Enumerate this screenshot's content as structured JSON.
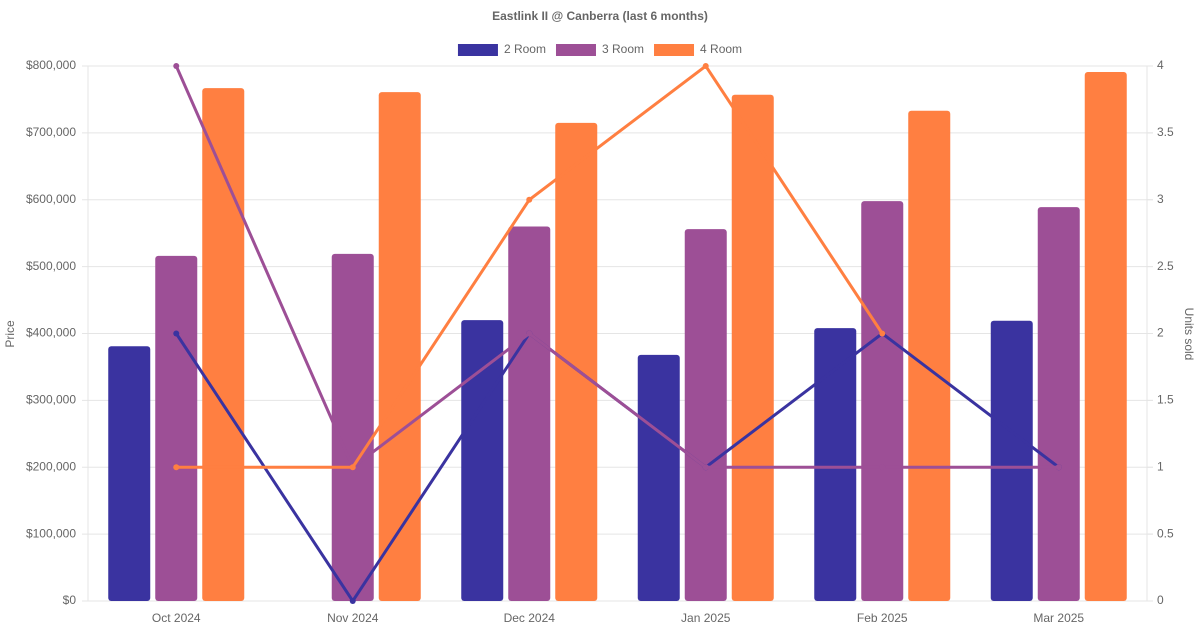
{
  "chart_data": {
    "type": "bar-line",
    "title": "Eastlink II @ Canberra (last 6 months)",
    "y_label": "Price",
    "y2_label": "Units sold",
    "categories": [
      "Oct 2024",
      "Nov 2024",
      "Dec 2024",
      "Jan 2025",
      "Feb 2025",
      "Mar 2025"
    ],
    "series": [
      {
        "name": "2 Room",
        "color": "#3a33a0",
        "values": [
          381000,
          null,
          420000,
          368000,
          408000,
          419000
        ],
        "units": [
          2,
          0,
          2,
          1,
          2,
          1
        ]
      },
      {
        "name": "3 Room",
        "color": "#9d4f96",
        "values": [
          516000,
          519000,
          560000,
          556000,
          598000,
          589000
        ],
        "units": [
          4,
          1,
          2,
          1,
          1,
          1
        ]
      },
      {
        "name": "4 Room",
        "color": "#ff7f41",
        "values": [
          767000,
          761000,
          715000,
          757000,
          733000,
          791000
        ],
        "units": [
          1,
          1,
          3,
          4,
          2,
          null
        ]
      }
    ],
    "ylim": [
      0,
      800000
    ],
    "yticks": [
      {
        "value": 0,
        "label": "$0"
      },
      {
        "value": 100000,
        "label": "$100,000"
      },
      {
        "value": 200000,
        "label": "$200,000"
      },
      {
        "value": 300000,
        "label": "$300,000"
      },
      {
        "value": 400000,
        "label": "$400,000"
      },
      {
        "value": 500000,
        "label": "$500,000"
      },
      {
        "value": 600000,
        "label": "$600,000"
      },
      {
        "value": 700000,
        "label": "$700,000"
      },
      {
        "value": 800000,
        "label": "$800,000"
      }
    ],
    "y2lim": [
      0,
      4
    ],
    "y2ticks": [
      0,
      0.5,
      1,
      1.5,
      2,
      2.5,
      3,
      3.5,
      4
    ],
    "grid": true
  }
}
